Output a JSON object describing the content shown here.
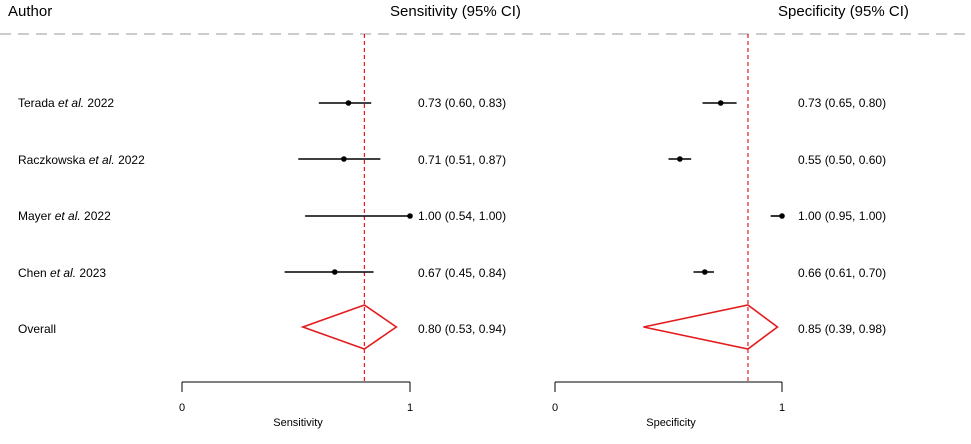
{
  "header": {
    "author": "Author",
    "sens_col": "Sensitivity (95% CI)",
    "spec_col": "Specificity (95% CI)"
  },
  "colors": {
    "ref_line": "#e41a1c",
    "diamond": "#e41a1c",
    "points": "#000000",
    "separator": "#bbbbbb"
  },
  "rows": [
    {
      "author": "Terada",
      "etal": "et al.",
      "year": "2022"
    },
    {
      "author": "Raczkowska",
      "etal": "et al.",
      "year": "2022"
    },
    {
      "author": "Mayer",
      "etal": "et al.",
      "year": "2022"
    },
    {
      "author": "Chen",
      "etal": "et al.",
      "year": "2023"
    },
    {
      "author": "Overall",
      "etal": "",
      "year": ""
    }
  ],
  "chart_data": [
    {
      "type": "forest",
      "title": "Sensitivity (95% CI)",
      "xlabel": "Sensitivity",
      "xlim": [
        0,
        1
      ],
      "ticks": [
        "0",
        "1"
      ],
      "reference": 0.8,
      "studies": [
        {
          "est": 0.73,
          "lo": 0.6,
          "hi": 0.83,
          "label": "0.73 (0.60, 0.83)"
        },
        {
          "est": 0.71,
          "lo": 0.51,
          "hi": 0.87,
          "label": "0.71 (0.51, 0.87)"
        },
        {
          "est": 1.0,
          "lo": 0.54,
          "hi": 1.0,
          "label": "1.00 (0.54, 1.00)"
        },
        {
          "est": 0.67,
          "lo": 0.45,
          "hi": 0.84,
          "label": "0.67 (0.45, 0.84)"
        }
      ],
      "overall": {
        "est": 0.8,
        "lo": 0.53,
        "hi": 0.94,
        "label": "0.80 (0.53, 0.94)"
      }
    },
    {
      "type": "forest",
      "title": "Specificity (95% CI)",
      "xlabel": "Specificity",
      "xlim": [
        0,
        1
      ],
      "ticks": [
        "0",
        "1"
      ],
      "reference": 0.85,
      "studies": [
        {
          "est": 0.73,
          "lo": 0.65,
          "hi": 0.8,
          "label": "0.73 (0.65, 0.80)"
        },
        {
          "est": 0.55,
          "lo": 0.5,
          "hi": 0.6,
          "label": "0.55 (0.50, 0.60)"
        },
        {
          "est": 1.0,
          "lo": 0.95,
          "hi": 1.0,
          "label": "1.00 (0.95, 1.00)"
        },
        {
          "est": 0.66,
          "lo": 0.61,
          "hi": 0.7,
          "label": "0.66 (0.61, 0.70)"
        }
      ],
      "overall": {
        "est": 0.85,
        "lo": 0.39,
        "hi": 0.98,
        "label": "0.85 (0.39, 0.98)"
      }
    }
  ]
}
